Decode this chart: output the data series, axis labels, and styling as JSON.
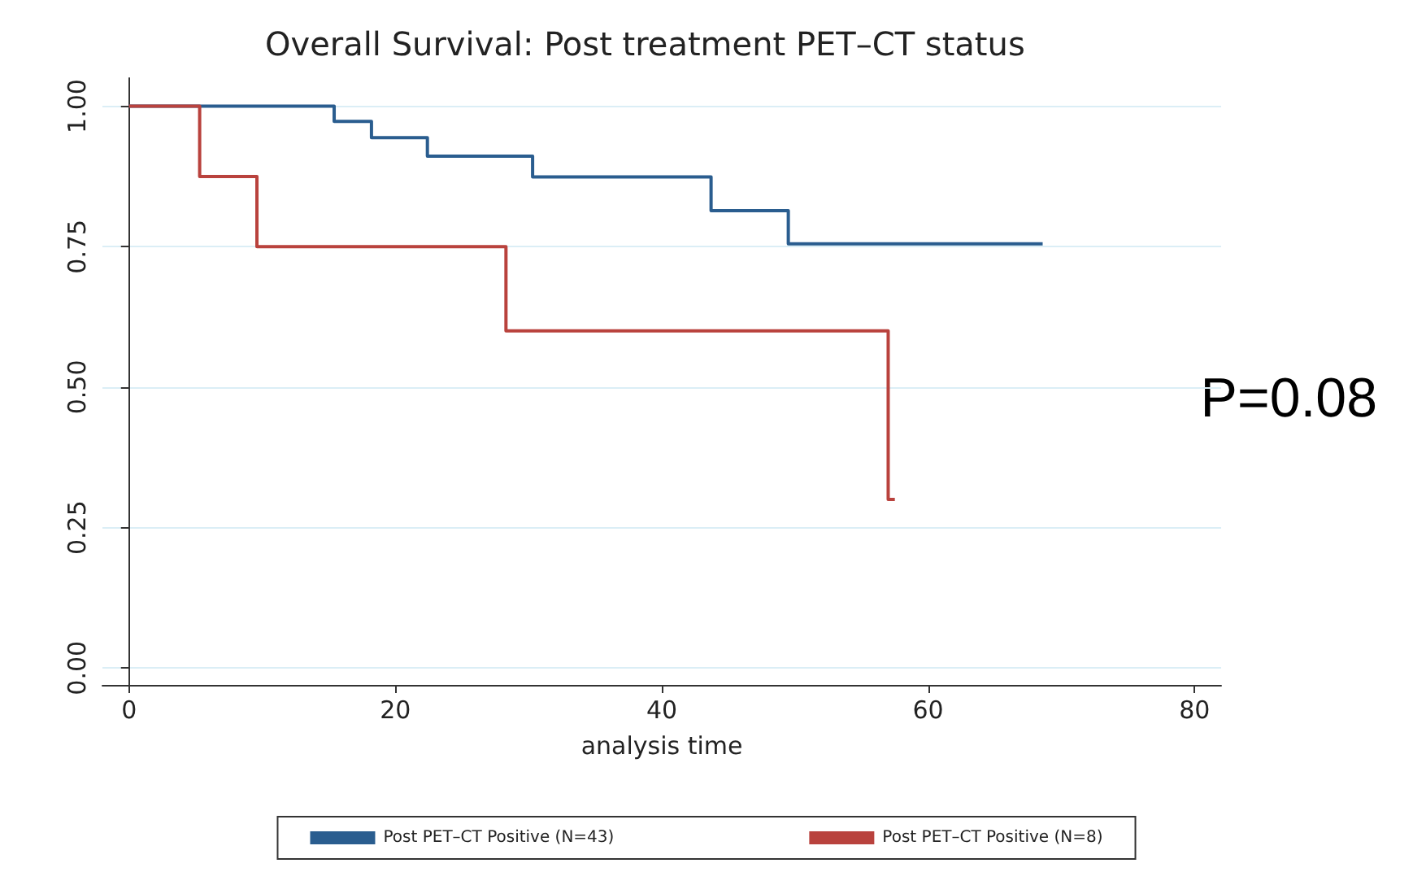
{
  "chart_data": {
    "type": "step",
    "title": "Overall Survival: Post treatment PET–CT status",
    "xlabel": "analysis time",
    "xlim": [
      -2,
      82
    ],
    "xticks": [
      0,
      20,
      40,
      60,
      80
    ],
    "ylim": [
      -0.03,
      1.05
    ],
    "yticks": [
      {
        "value": 0,
        "label": "0.00"
      },
      {
        "value": 0.25,
        "label": "0.25"
      },
      {
        "value": 0.5,
        "label": "0.50"
      },
      {
        "value": 0.75,
        "label": "0.75"
      },
      {
        "value": 1,
        "label": "1.00"
      }
    ],
    "grid": "y",
    "legend": "bottom",
    "annotations": [
      "P=0.08"
    ],
    "series": [
      {
        "name": "Post PET–CT Positive (N=43)",
        "color": "#2a5d8f",
        "x": [
          0,
          15.4,
          18.2,
          22.4,
          30.3,
          43.7,
          49.5,
          68.6
        ],
        "values": [
          1,
          0.973,
          0.944,
          0.911,
          0.874,
          0.814,
          0.755,
          0.755
        ]
      },
      {
        "name": "Post PET–CT Positive (N=8)",
        "color": "#b9423d",
        "x": [
          0,
          5.3,
          9.6,
          28.3,
          57,
          57.5
        ],
        "values": [
          1,
          0.875,
          0.75,
          0.6,
          0.3,
          0.3
        ]
      }
    ]
  }
}
